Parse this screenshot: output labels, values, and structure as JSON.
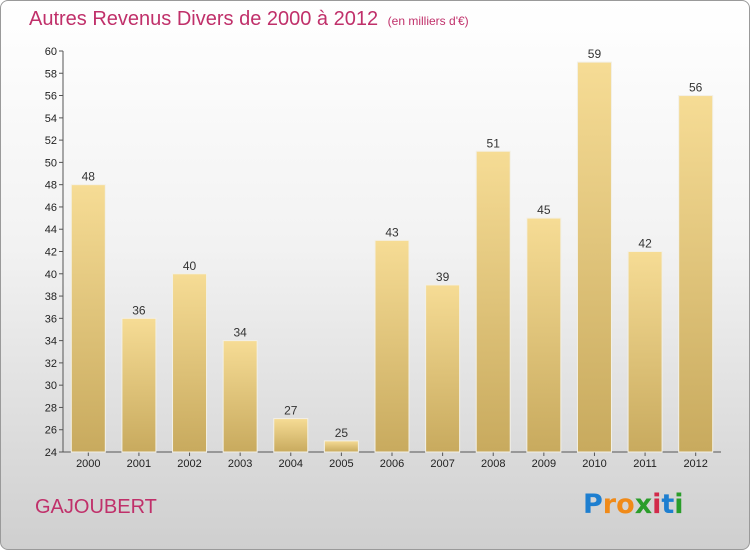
{
  "header": {
    "title": "Autres Revenus Divers de 2000 à 2012",
    "subtitle": "(en milliers d'€)"
  },
  "footer": {
    "commune": "GAJOUBERT",
    "logo_letters": [
      "P",
      "r",
      "o",
      "x",
      "i",
      "t",
      "i"
    ],
    "logo_colors": [
      "#1e7fd0",
      "#f08a18",
      "#f08a18",
      "#2a9d2a",
      "#d22a4a",
      "#1e7fd0",
      "#2a9d2a"
    ]
  },
  "colors": {
    "title": "#c0306a",
    "bar_light": "#f6dc95",
    "bar_dark": "#c8aa5e"
  },
  "chart_data": {
    "type": "bar",
    "categories": [
      "2000",
      "2001",
      "2002",
      "2003",
      "2004",
      "2005",
      "2006",
      "2007",
      "2008",
      "2009",
      "2010",
      "2011",
      "2012"
    ],
    "values": [
      48,
      36,
      40,
      34,
      27,
      25,
      43,
      39,
      51,
      45,
      59,
      42,
      56
    ],
    "ylim": [
      24,
      60
    ],
    "yticks": [
      24,
      26,
      28,
      30,
      32,
      34,
      36,
      38,
      40,
      42,
      44,
      46,
      48,
      50,
      52,
      54,
      56,
      58,
      60
    ],
    "grid": false,
    "data_labels": true
  }
}
